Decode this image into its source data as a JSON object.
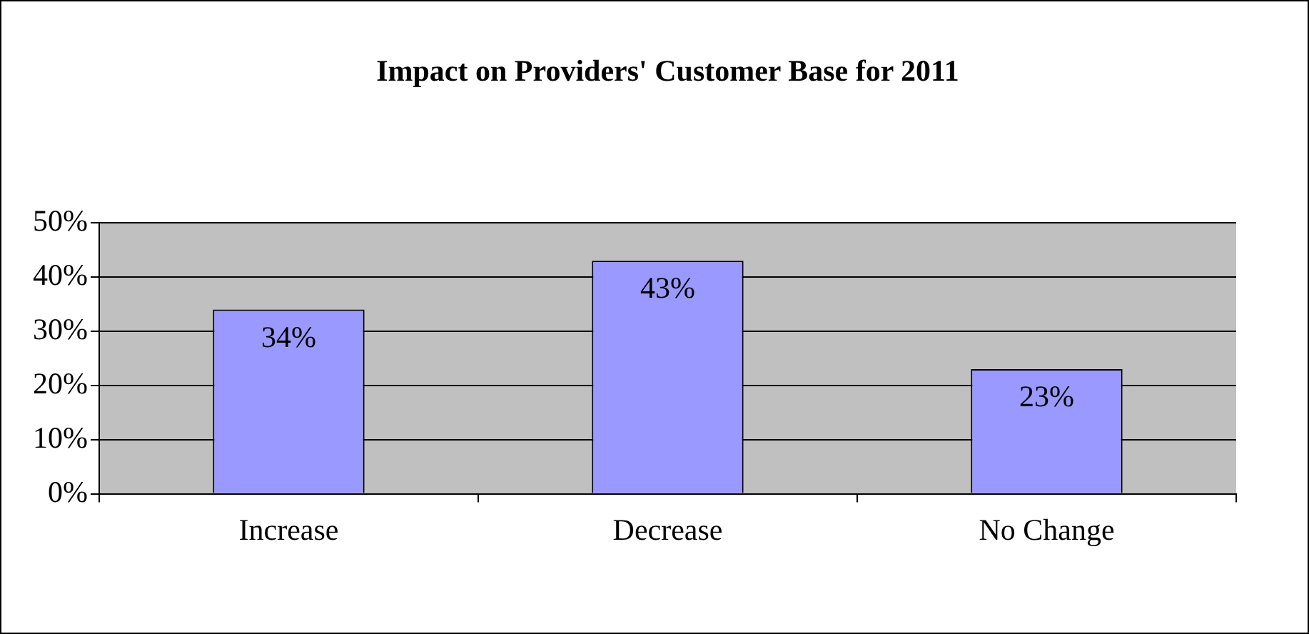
{
  "chart_data": {
    "type": "bar",
    "title": "Impact on Providers' Customer Base for 2011",
    "categories": [
      "Increase",
      "Decrease",
      "No Change"
    ],
    "values": [
      34,
      43,
      23
    ],
    "value_labels": [
      "34%",
      "43%",
      "23%"
    ],
    "color": "#9999ff",
    "ylim": [
      0,
      50
    ],
    "yticks": [
      {
        "value": 0,
        "label": "0%"
      },
      {
        "value": 10,
        "label": "10%"
      },
      {
        "value": 20,
        "label": "20%"
      },
      {
        "value": 30,
        "label": "30%"
      },
      {
        "value": 40,
        "label": "40%"
      },
      {
        "value": 50,
        "label": "50%"
      }
    ],
    "grid": "y",
    "legend": false
  }
}
